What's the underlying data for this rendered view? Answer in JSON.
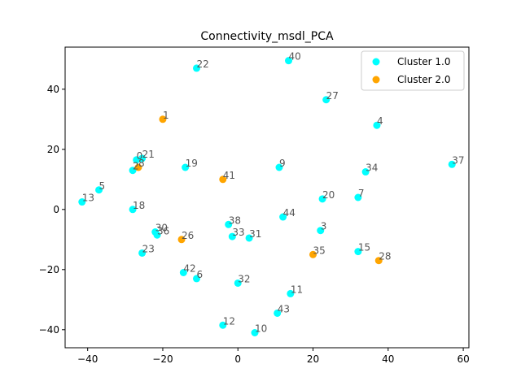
{
  "chart_data": {
    "type": "scatter",
    "title": "Connectivity_msdl_PCA",
    "xlabel": "",
    "ylabel": "",
    "xlim": [
      -46,
      61.5
    ],
    "ylim": [
      -46,
      54
    ],
    "xticks": [
      -40,
      -20,
      0,
      20,
      40,
      60
    ],
    "yticks": [
      -40,
      -20,
      0,
      20,
      40
    ],
    "grid": false,
    "legend_position": "top-right",
    "series": [
      {
        "name": "Cluster 1.0",
        "color": "#00ffff",
        "points": [
          {
            "label": "0",
            "x": -27,
            "y": 16.5
          },
          {
            "label": "2",
            "x": -28,
            "y": 13
          },
          {
            "label": "3",
            "x": 22,
            "y": -7
          },
          {
            "label": "4",
            "x": 37,
            "y": 28
          },
          {
            "label": "5",
            "x": -37,
            "y": 6.5
          },
          {
            "label": "6",
            "x": -11,
            "y": -23
          },
          {
            "label": "7",
            "x": 32,
            "y": 4
          },
          {
            "label": "9",
            "x": 11,
            "y": 14
          },
          {
            "label": "10",
            "x": 4.5,
            "y": -41
          },
          {
            "label": "11",
            "x": 14,
            "y": -28
          },
          {
            "label": "12",
            "x": -4,
            "y": -38.5
          },
          {
            "label": "13",
            "x": -41.5,
            "y": 2.5
          },
          {
            "label": "15",
            "x": 32,
            "y": -14
          },
          {
            "label": "18",
            "x": -28,
            "y": 0
          },
          {
            "label": "19",
            "x": -14,
            "y": 14
          },
          {
            "label": "20",
            "x": 22.5,
            "y": 3.5
          },
          {
            "label": "21",
            "x": -25.5,
            "y": 17
          },
          {
            "label": "22",
            "x": -11,
            "y": 47
          },
          {
            "label": "23",
            "x": -25.5,
            "y": -14.5
          },
          {
            "label": "27",
            "x": 23.5,
            "y": 36.5
          },
          {
            "label": "30",
            "x": -22,
            "y": -7.5
          },
          {
            "label": "31",
            "x": 3,
            "y": -9.5
          },
          {
            "label": "32",
            "x": 0,
            "y": -24.5
          },
          {
            "label": "33",
            "x": -1.5,
            "y": -9
          },
          {
            "label": "34",
            "x": 34,
            "y": 12.5
          },
          {
            "label": "36",
            "x": -21.5,
            "y": -8.5
          },
          {
            "label": "37",
            "x": 57,
            "y": 15
          },
          {
            "label": "38",
            "x": -2.5,
            "y": -5
          },
          {
            "label": "40",
            "x": 13.5,
            "y": 49.5
          },
          {
            "label": "42",
            "x": -14.5,
            "y": -21
          },
          {
            "label": "43",
            "x": 10.5,
            "y": -34.5
          },
          {
            "label": "44",
            "x": 12,
            "y": -2.5
          }
        ]
      },
      {
        "name": "Cluster 2.0",
        "color": "#ffa500",
        "points": [
          {
            "label": "1",
            "x": -20,
            "y": 30
          },
          {
            "label": "8",
            "x": -26.5,
            "y": 14
          },
          {
            "label": "26",
            "x": -15,
            "y": -10
          },
          {
            "label": "28",
            "x": 37.5,
            "y": -17
          },
          {
            "label": "35",
            "x": 20,
            "y": -15
          },
          {
            "label": "41",
            "x": -4,
            "y": 10
          }
        ]
      }
    ]
  }
}
